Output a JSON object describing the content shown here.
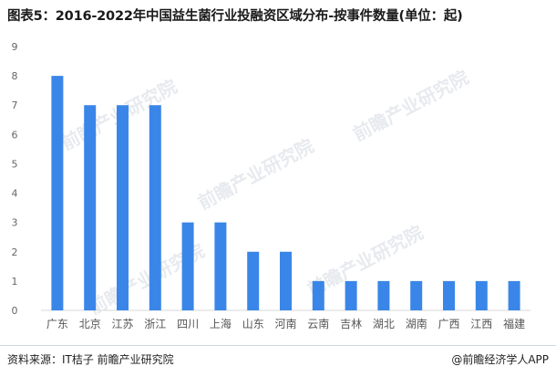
{
  "title": "图表5：2016-2022年中国益生菌行业投融资区域分布-按事件数量(单位：起)",
  "source": "资料来源：IT桔子 前瞻产业研究院",
  "credit": "@前瞻经济学人APP",
  "watermark": "前瞻产业研究院",
  "colors": {
    "bar": "#3a86e8",
    "axis": "#d9d9d9",
    "tick_text": "#666666"
  },
  "chart_data": {
    "type": "bar",
    "categories": [
      "广东",
      "北京",
      "江苏",
      "浙江",
      "四川",
      "上海",
      "山东",
      "河南",
      "云南",
      "吉林",
      "湖北",
      "湖南",
      "广西",
      "江西",
      "福建"
    ],
    "values": [
      8,
      7,
      7,
      7,
      3,
      3,
      2,
      2,
      1,
      1,
      1,
      1,
      1,
      1,
      1
    ],
    "yticks": [
      0,
      1,
      2,
      3,
      4,
      5,
      6,
      7,
      8,
      9
    ],
    "ylim": [
      0,
      9
    ],
    "grid": false,
    "legend": "none"
  }
}
